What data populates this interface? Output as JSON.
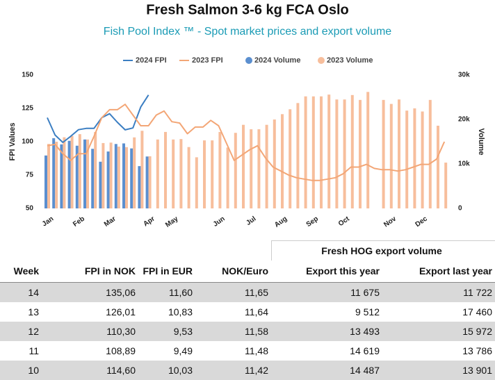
{
  "chart_data": {
    "type": "combo",
    "title": "Fresh Salmon 3-6 kg FCA Oslo",
    "subtitle": "Fish Pool Index ™ - Spot market prices and export volume",
    "y_label": "FPI Values",
    "y2_label": "Volume",
    "categories": [
      "Jan",
      null,
      null,
      null,
      "Feb",
      null,
      null,
      null,
      "Mar",
      null,
      null,
      null,
      null,
      "Apr",
      null,
      null,
      "May",
      null,
      null,
      null,
      null,
      null,
      "Jun",
      null,
      null,
      null,
      "Jul",
      null,
      null,
      null,
      "Aug",
      null,
      null,
      null,
      "Sep",
      null,
      null,
      null,
      "Oct",
      null,
      null,
      null,
      null,
      null,
      "Nov",
      null,
      null,
      null,
      "Dec",
      null,
      null,
      null
    ],
    "ylim": [
      50,
      150
    ],
    "yticks": [
      50,
      75,
      100,
      125,
      150
    ],
    "y2lim": [
      0,
      30000
    ],
    "y2ticks": [
      {
        "value": 0,
        "label": "0"
      },
      {
        "value": 10000,
        "label": "10k"
      },
      {
        "value": 20000,
        "label": "20k"
      },
      {
        "value": 30000,
        "label": "30k"
      }
    ],
    "grid": false,
    "legend": "top",
    "series": [
      {
        "name": "2024 FPI",
        "type": "line",
        "color": "#3b7ec2",
        "values": [
          118,
          105,
          99.5,
          104,
          109,
          110,
          110,
          118,
          121,
          114.6,
          108.89,
          110.3,
          126.01,
          135.06,
          null,
          null,
          null,
          null,
          null,
          null,
          null,
          null,
          null,
          null,
          null,
          null,
          null,
          null,
          null,
          null,
          null,
          null,
          null,
          null,
          null,
          null,
          null,
          null,
          null,
          null,
          null,
          null,
          null,
          null,
          null,
          null,
          null,
          null,
          null,
          null,
          null,
          null
        ]
      },
      {
        "name": "2023 FPI",
        "type": "line",
        "color": "#f3a676",
        "values": [
          97,
          98,
          91,
          86,
          91,
          91,
          104,
          118,
          124,
          124,
          128,
          120,
          112,
          112,
          120,
          123,
          115,
          114,
          106,
          111,
          111,
          116,
          112,
          99,
          86,
          90,
          94,
          97,
          88,
          81,
          78,
          75,
          73,
          72,
          71,
          71,
          72,
          73,
          76,
          81,
          81,
          83,
          80,
          79,
          79,
          78,
          79,
          81,
          83,
          83,
          87,
          100
        ]
      },
      {
        "name": "2024 Volume",
        "type": "bar",
        "axis": "y2",
        "color": "#5b8fcf",
        "values": [
          11900,
          15800,
          14400,
          15200,
          14100,
          15500,
          13400,
          10500,
          12800,
          14487,
          14619,
          13493,
          9512,
          11675,
          null,
          null,
          null,
          null,
          null,
          null,
          null,
          null,
          null,
          null,
          null,
          null,
          null,
          null,
          null,
          null,
          null,
          null,
          null,
          null,
          null,
          null,
          null,
          null,
          null,
          null,
          null,
          null,
          null,
          null,
          null,
          null,
          null,
          null,
          null,
          null,
          null,
          null
        ]
      },
      {
        "name": "2023 Volume",
        "type": "bar",
        "axis": "y2",
        "color": "#f7be9c",
        "values": [
          14500,
          15000,
          16000,
          16300,
          16700,
          15500,
          17200,
          14700,
          14800,
          13901,
          13786,
          15972,
          17460,
          11722,
          15500,
          17200,
          15500,
          15600,
          13800,
          11500,
          15300,
          15300,
          17200,
          13700,
          17000,
          18800,
          17800,
          17800,
          18800,
          20000,
          21200,
          22300,
          23700,
          25200,
          25200,
          25200,
          25600,
          24500,
          24500,
          25500,
          24400,
          26200,
          null,
          24400,
          23500,
          24500,
          22000,
          22500,
          21800,
          24400,
          18600,
          10300
        ]
      }
    ]
  },
  "table": {
    "group_header": "Fresh HOG export volume",
    "columns": [
      "Week",
      "FPI in NOK",
      "FPI in EUR",
      "NOK/Euro",
      "Export this year",
      "Export last year"
    ],
    "rows": [
      [
        "14",
        "135,06",
        "11,60",
        "11,65",
        "11 675",
        "11 722"
      ],
      [
        "13",
        "126,01",
        "10,83",
        "11,64",
        "9 512",
        "17 460"
      ],
      [
        "12",
        "110,30",
        "9,53",
        "11,58",
        "13 493",
        "15 972"
      ],
      [
        "11",
        "108,89",
        "9,49",
        "11,48",
        "14 619",
        "13 786"
      ],
      [
        "10",
        "114,60",
        "10,03",
        "11,42",
        "14 487",
        "13 901"
      ]
    ]
  }
}
